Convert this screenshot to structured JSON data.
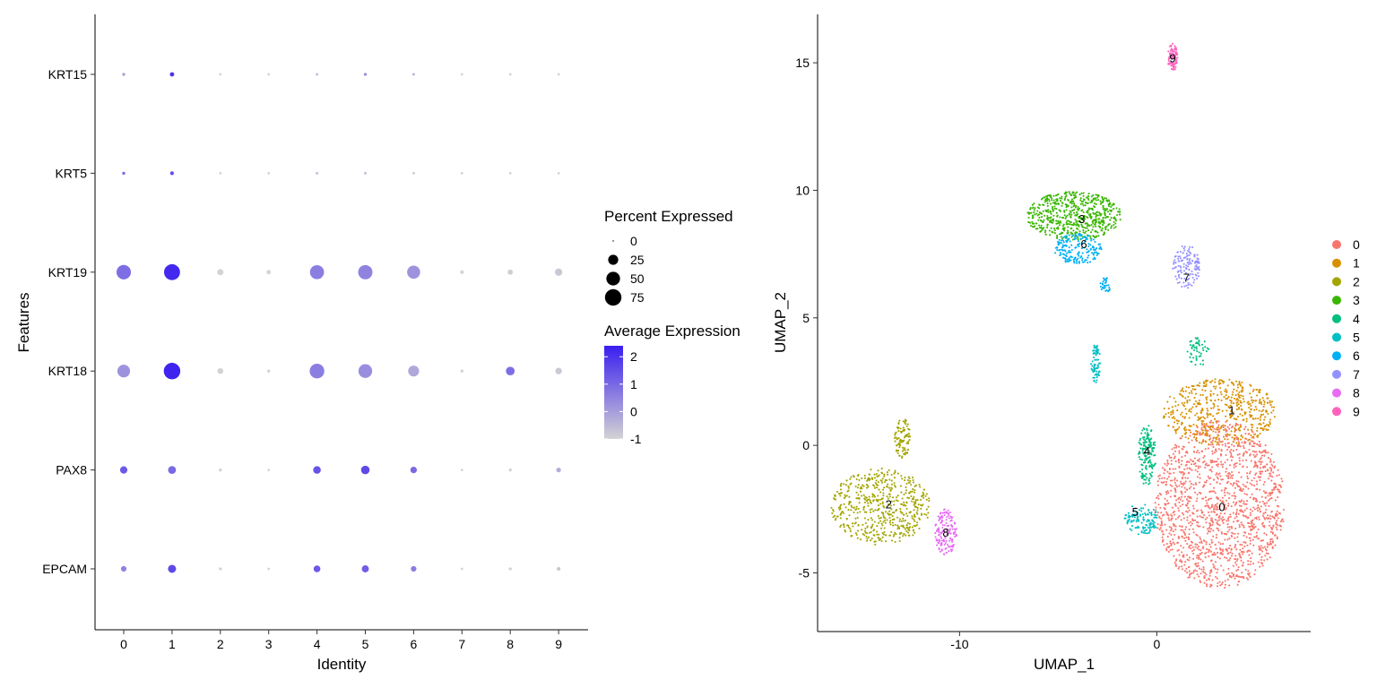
{
  "chart_data": [
    {
      "type": "dot",
      "xlabel": "Identity",
      "ylabel": "Features",
      "categories": [
        "0",
        "1",
        "2",
        "3",
        "4",
        "5",
        "6",
        "7",
        "8",
        "9"
      ],
      "features": [
        "KRT15",
        "KRT5",
        "KRT19",
        "KRT18",
        "PAX8",
        "EPCAM"
      ],
      "pct_expressed": {
        "KRT15": [
          1,
          3,
          0.5,
          0.5,
          0.5,
          1,
          0.5,
          0.5,
          0.5,
          0.5
        ],
        "KRT5": [
          1,
          2,
          0.5,
          0.5,
          0.5,
          0.5,
          0.5,
          0.5,
          0.5,
          0.5
        ],
        "KRT19": [
          56,
          70,
          8,
          3,
          53,
          55,
          45,
          2,
          5,
          12
        ],
        "KRT18": [
          42,
          75,
          7,
          1,
          58,
          50,
          30,
          1,
          18,
          9
        ],
        "PAX8": [
          12,
          14,
          1,
          0.5,
          13,
          17,
          9,
          0.5,
          1,
          4
        ],
        "EPCAM": [
          6,
          15,
          1,
          0.5,
          10,
          11,
          6,
          0.5,
          1,
          2
        ]
      },
      "avg_expression": {
        "KRT15": [
          0.0,
          2.0,
          -1.0,
          -1.0,
          -0.5,
          0.3,
          -0.3,
          -1.0,
          -1.0,
          -1.0
        ],
        "KRT5": [
          1.0,
          1.5,
          -1.0,
          -1.0,
          -0.5,
          -0.5,
          -0.8,
          -1.0,
          -1.0,
          -1.0
        ],
        "KRT19": [
          0.9,
          2.2,
          -1.0,
          -1.0,
          0.6,
          0.5,
          0.2,
          -1.0,
          -0.9,
          -0.8
        ],
        "KRT18": [
          0.2,
          2.3,
          -1.0,
          -1.0,
          0.6,
          0.3,
          -0.2,
          -1.0,
          0.9,
          -0.8
        ],
        "PAX8": [
          1.3,
          1.0,
          -1.0,
          -1.0,
          1.4,
          1.6,
          1.0,
          -1.0,
          -1.0,
          -0.3
        ],
        "EPCAM": [
          0.5,
          1.6,
          -1.0,
          -1.0,
          1.3,
          1.2,
          0.6,
          -1.0,
          -1.0,
          -0.8
        ]
      },
      "legend_size": {
        "title": "Percent Expressed",
        "values": [
          0,
          25,
          50,
          75
        ],
        "labels": [
          "0",
          "25",
          "50",
          "75"
        ]
      },
      "legend_color": {
        "title": "Average Expression",
        "range": [
          -1,
          2.4
        ],
        "ticks": [
          2,
          1,
          0,
          -1
        ],
        "labels": [
          "2",
          "1",
          "0",
          "-1"
        ],
        "low_color": "#d3d3d3",
        "high_color": "#3a1ef0"
      }
    },
    {
      "type": "scatter",
      "xlabel": "UMAP_1",
      "ylabel": "UMAP_2",
      "xlim": [
        -17.2,
        7.8
      ],
      "ylim": [
        -7.3,
        16.9
      ],
      "xticks": [
        -10,
        0
      ],
      "xtick_labels": [
        "-10",
        "0"
      ],
      "yticks": [
        15,
        10,
        5,
        0,
        -5
      ],
      "ytick_labels": [
        "15",
        "10",
        "5",
        "0",
        "-5"
      ],
      "legend": {
        "position": "right",
        "labels": [
          "0",
          "1",
          "2",
          "3",
          "4",
          "5",
          "6",
          "7",
          "8",
          "9"
        ]
      },
      "cluster_colors": [
        "#f8766d",
        "#d89000",
        "#a3a500",
        "#39b600",
        "#00bf7d",
        "#00bfc4",
        "#00b0f6",
        "#9590ff",
        "#e76bf3",
        "#ff62bc"
      ],
      "cluster_labels": [
        {
          "label": "0",
          "x": 3.3,
          "y": -2.4
        },
        {
          "label": "1",
          "x": 3.8,
          "y": 1.4
        },
        {
          "label": "2",
          "x": -13.6,
          "y": -2.3
        },
        {
          "label": "3",
          "x": -3.8,
          "y": 8.9
        },
        {
          "label": "4",
          "x": -0.5,
          "y": -0.2
        },
        {
          "label": "5",
          "x": -1.1,
          "y": -2.6
        },
        {
          "label": "6",
          "x": -3.7,
          "y": 7.9
        },
        {
          "label": "7",
          "x": 1.5,
          "y": 6.6
        },
        {
          "label": "8",
          "x": -10.7,
          "y": -3.4
        },
        {
          "label": "9",
          "x": 0.8,
          "y": 15.2
        }
      ],
      "clusters": [
        {
          "label": "0",
          "n": 1500,
          "shape": "ellipse",
          "cx": 3.2,
          "cy": -2.3,
          "rx": 3.3,
          "ry": 3.3
        },
        {
          "label": "1",
          "n": 520,
          "shape": "ellipse",
          "cx": 3.2,
          "cy": 1.3,
          "rx": 2.9,
          "ry": 1.3
        },
        {
          "label": "2",
          "n": 540,
          "shape": "ellipse",
          "cx": -14.0,
          "cy": -2.4,
          "rx": 2.5,
          "ry": 1.5
        },
        {
          "label": "2",
          "n": 90,
          "shape": "ellipse",
          "cx": -12.9,
          "cy": 0.3,
          "rx": 0.4,
          "ry": 0.8
        },
        {
          "label": "3",
          "n": 600,
          "shape": "ellipse",
          "cx": -4.2,
          "cy": 9.0,
          "rx": 2.4,
          "ry": 0.95
        },
        {
          "label": "4",
          "n": 160,
          "shape": "ellipse",
          "cx": -0.5,
          "cy": -0.4,
          "rx": 0.45,
          "ry": 1.2
        },
        {
          "label": "4",
          "n": 50,
          "shape": "ellipse",
          "cx": 2.1,
          "cy": 3.7,
          "rx": 0.6,
          "ry": 0.6
        },
        {
          "label": "5",
          "n": 120,
          "shape": "ellipse",
          "cx": -0.8,
          "cy": -2.9,
          "rx": 0.9,
          "ry": 0.6
        },
        {
          "label": "5",
          "n": 70,
          "shape": "ellipse",
          "cx": -3.1,
          "cy": 3.2,
          "rx": 0.25,
          "ry": 0.75
        },
        {
          "label": "6",
          "n": 180,
          "shape": "ellipse",
          "cx": -4.0,
          "cy": 7.7,
          "rx": 1.2,
          "ry": 0.6
        },
        {
          "label": "6",
          "n": 30,
          "shape": "ellipse",
          "cx": -2.6,
          "cy": 6.3,
          "rx": 0.3,
          "ry": 0.3
        },
        {
          "label": "7",
          "n": 130,
          "shape": "ellipse",
          "cx": 1.5,
          "cy": 7.0,
          "rx": 0.7,
          "ry": 0.85
        },
        {
          "label": "8",
          "n": 150,
          "shape": "ellipse",
          "cx": -10.7,
          "cy": -3.4,
          "rx": 0.55,
          "ry": 0.9
        },
        {
          "label": "9",
          "n": 90,
          "shape": "ellipse",
          "cx": 0.8,
          "cy": 15.2,
          "rx": 0.25,
          "ry": 0.55
        }
      ]
    }
  ]
}
